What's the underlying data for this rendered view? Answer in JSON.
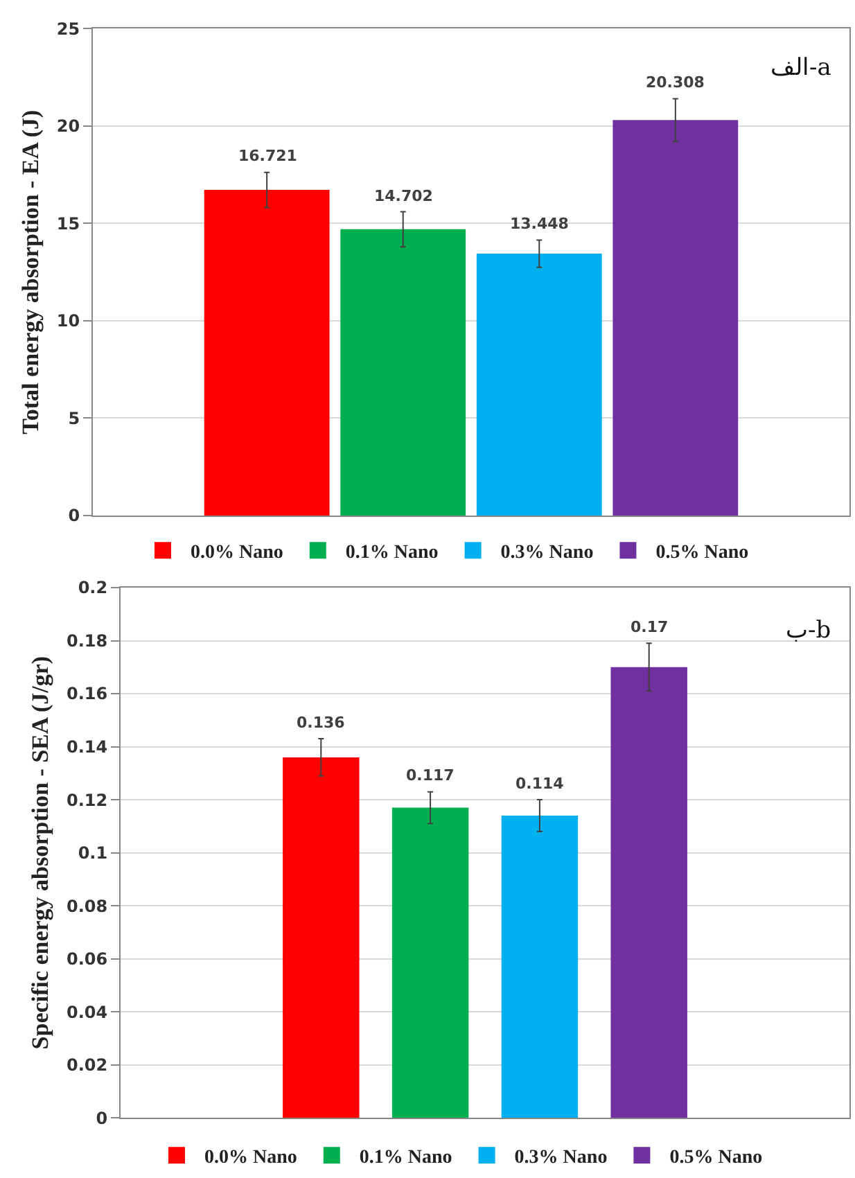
{
  "chart_data": [
    {
      "type": "bar",
      "categories": [
        null
      ],
      "ylabel": "Total energy absorption - EA (J)",
      "ylim": [
        0,
        25
      ],
      "yticks": [
        0,
        5,
        10,
        15,
        20,
        25
      ],
      "grid": "y",
      "legend": "bottom",
      "data_labels": true,
      "annotations": [
        "الف-a"
      ],
      "series": [
        {
          "name": "0.0% Nano",
          "color": "#ff0000",
          "values": [
            16.721
          ],
          "errors": [
            0.9
          ]
        },
        {
          "name": "0.1% Nano",
          "color": "#00b050",
          "values": [
            14.702
          ],
          "errors": [
            0.9
          ]
        },
        {
          "name": "0.3% Nano",
          "color": "#00b0f0",
          "values": [
            13.448
          ],
          "errors": [
            0.7
          ]
        },
        {
          "name": "0.5% Nano",
          "color": "#7030a0",
          "values": [
            20.308
          ],
          "errors": [
            1.1
          ]
        }
      ]
    },
    {
      "type": "bar",
      "categories": [
        null
      ],
      "ylabel": "Specific energy absorption - SEA (J/gr)",
      "ylim": [
        0,
        0.2
      ],
      "yticks": [
        0,
        0.02,
        0.04,
        0.06,
        0.08,
        0.1,
        0.12,
        0.14,
        0.16,
        0.18,
        0.2
      ],
      "grid": "y",
      "legend": "bottom",
      "data_labels": true,
      "annotations": [
        "ب-b"
      ],
      "series": [
        {
          "name": "0.0% Nano",
          "color": "#ff0000",
          "values": [
            0.136
          ],
          "errors": [
            0.007
          ]
        },
        {
          "name": "0.1% Nano",
          "color": "#00b050",
          "values": [
            0.117
          ],
          "errors": [
            0.006
          ]
        },
        {
          "name": "0.3% Nano",
          "color": "#00b0f0",
          "values": [
            0.114
          ],
          "errors": [
            0.006
          ]
        },
        {
          "name": "0.5% Nano",
          "color": "#7030a0",
          "values": [
            0.17
          ],
          "errors": [
            0.009
          ]
        }
      ]
    }
  ]
}
